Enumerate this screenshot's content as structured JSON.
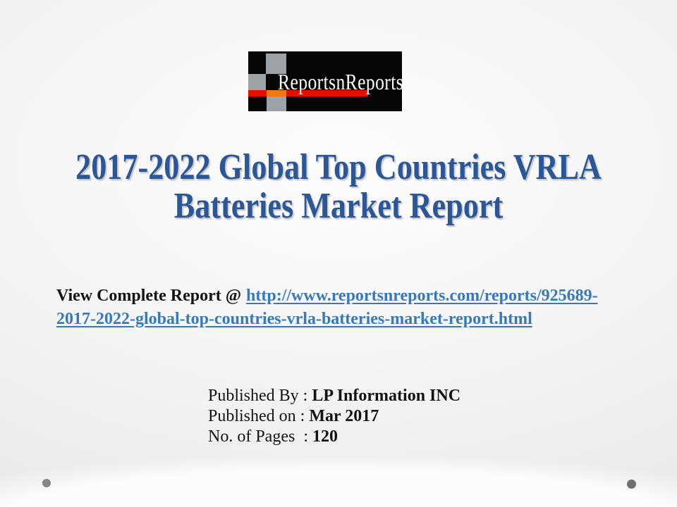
{
  "logo": {
    "text": "ReportsnReports",
    "colors": {
      "background": "#070707",
      "stripe_red": "#e60f00",
      "stripe_orange": "#ef7b10",
      "checker_gray": "#9fa2a4",
      "wordmark": "#ffffff"
    }
  },
  "title": {
    "line1": "2017-2022 Global Top Countries VRLA",
    "line2": "Batteries Market Report",
    "color": "#2b5796"
  },
  "link_block": {
    "prefix": "View Complete Report @",
    "url_line1": "http://www.reportsnreports.com/reports/925689-",
    "url_line2": "2017-2022-global-top-countries-vrla-batteries-market-report.html",
    "link_color": "#3579be"
  },
  "meta": {
    "rows": [
      {
        "label": "Published By : ",
        "value": "LP Information INC"
      },
      {
        "label": "Published on : ",
        "value": "Mar 2017"
      },
      {
        "label": "No. of Pages  : ",
        "value": "120"
      }
    ]
  },
  "decor": {
    "dot_color_left": "#868686",
    "dot_color_right": "#6f6f6f"
  }
}
